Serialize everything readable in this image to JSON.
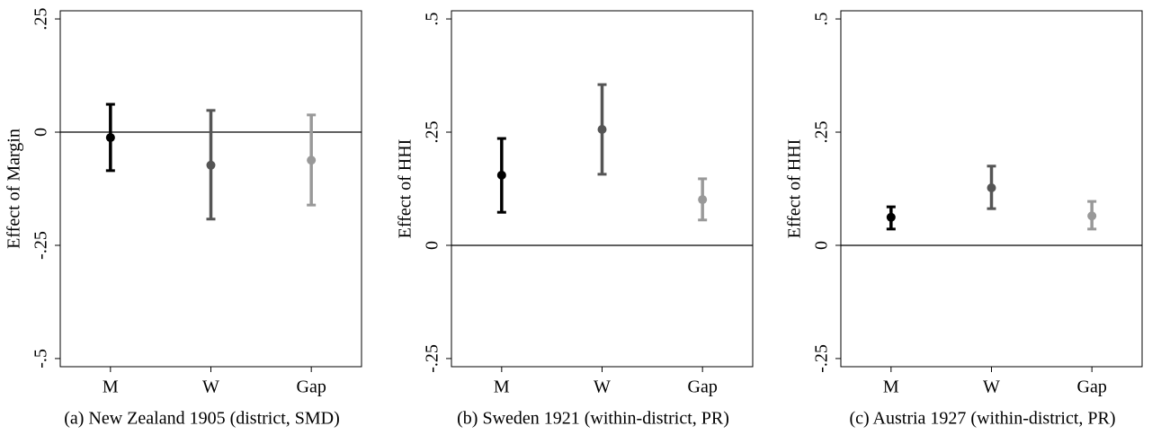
{
  "chart_data": [
    {
      "type": "errorbar",
      "caption": "(a) New Zealand 1905 (district, SMD)",
      "ylabel": "Effect of Margin",
      "categories": [
        "M",
        "W",
        "Gap"
      ],
      "values": [
        -0.012,
        -0.073,
        -0.062
      ],
      "ci_low": [
        -0.085,
        -0.192,
        -0.161
      ],
      "ci_high": [
        0.0615,
        0.048,
        0.038
      ],
      "colors": [
        "#000000",
        "#555555",
        "#999999"
      ],
      "ylim": [
        -0.518,
        0.268
      ],
      "yticks": [
        {
          "value": 0.25,
          "label": ".25"
        },
        0,
        {
          "value": -0.25,
          "label": "-.25"
        },
        {
          "value": -0.5,
          "label": "-.5"
        }
      ],
      "hline": 0
    },
    {
      "type": "errorbar",
      "caption": "(b) Sweden 1921 (within-district, PR)",
      "ylabel": "Effect of HHI",
      "categories": [
        "M",
        "W",
        "Gap"
      ],
      "values": [
        0.155,
        0.256,
        0.101
      ],
      "ci_low": [
        0.073,
        0.157,
        0.056
      ],
      "ci_high": [
        0.236,
        0.355,
        0.147
      ],
      "colors": [
        "#000000",
        "#555555",
        "#999999"
      ],
      "ylim": [
        -0.268,
        0.518
      ],
      "yticks": [
        {
          "value": 0.5,
          "label": ".5"
        },
        {
          "value": 0.25,
          "label": ".25"
        },
        0,
        {
          "value": -0.25,
          "label": "-.25"
        }
      ],
      "hline": 0
    },
    {
      "type": "errorbar",
      "caption": "(c) Austria 1927 (within-district, PR)",
      "ylabel": "Effect of HHI",
      "categories": [
        "M",
        "W",
        "Gap"
      ],
      "values": [
        0.062,
        0.127,
        0.065
      ],
      "ci_low": [
        0.036,
        0.081,
        0.036
      ],
      "ci_high": [
        0.085,
        0.175,
        0.097
      ],
      "colors": [
        "#000000",
        "#555555",
        "#999999"
      ],
      "ylim": [
        -0.268,
        0.518
      ],
      "yticks": [
        {
          "value": 0.5,
          "label": ".5"
        },
        {
          "value": 0.25,
          "label": ".25"
        },
        0,
        {
          "value": -0.25,
          "label": "-.25"
        }
      ],
      "hline": 0
    }
  ]
}
